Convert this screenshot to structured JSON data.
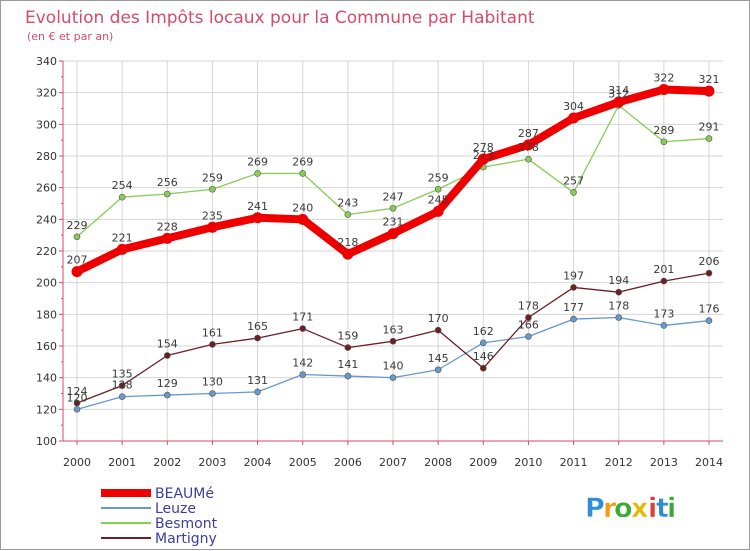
{
  "chart_data": {
    "type": "line",
    "title": "Evolution des Impôts locaux pour la Commune par Habitant",
    "subtitle": "(en € et par an)",
    "xlabel": "",
    "ylabel": "",
    "x": [
      "2000",
      "2001",
      "2002",
      "2003",
      "2004",
      "2005",
      "2006",
      "2007",
      "2008",
      "2009",
      "2010",
      "2011",
      "2012",
      "2013",
      "2014"
    ],
    "ylim": [
      100,
      340
    ],
    "yticks": [
      100,
      120,
      140,
      160,
      180,
      200,
      220,
      240,
      260,
      280,
      300,
      320,
      340
    ],
    "grid": true,
    "legend_position": "bottom-left",
    "series": [
      {
        "name": "BEAUMé",
        "color": "#ee0000",
        "values": [
          207,
          221,
          228,
          235,
          241,
          240,
          218,
          231,
          245,
          278,
          287,
          304,
          314,
          322,
          321
        ]
      },
      {
        "name": "Leuze",
        "color": "#6699cc",
        "values": [
          120,
          128,
          129,
          130,
          131,
          142,
          141,
          140,
          145,
          162,
          166,
          177,
          178,
          173,
          176
        ]
      },
      {
        "name": "Besmont",
        "color": "#88cc55",
        "values": [
          229,
          254,
          256,
          259,
          269,
          269,
          243,
          247,
          259,
          273,
          278,
          257,
          312,
          289,
          291
        ]
      },
      {
        "name": "Martigny",
        "color": "#6b1f24",
        "values": [
          124,
          135,
          154,
          161,
          165,
          171,
          159,
          163,
          170,
          146,
          178,
          197,
          194,
          201,
          206
        ]
      }
    ]
  },
  "logo": {
    "letters": [
      "P",
      "r",
      "o",
      "x",
      "i",
      "t",
      "i"
    ],
    "colors": [
      "#2f8fd6",
      "#f39c12",
      "#3aaa35",
      "#e6b800",
      "#e03c31",
      "#2f8fd6",
      "#3aaa35"
    ]
  }
}
